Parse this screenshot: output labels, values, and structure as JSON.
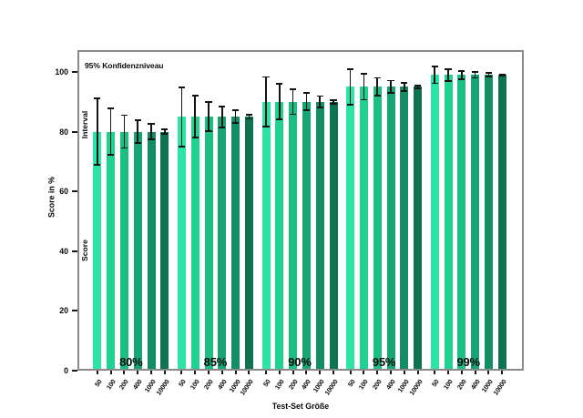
{
  "chart_data": {
    "type": "bar",
    "annotation": "95% Konfidenzniveau",
    "xlabel": "Test-Set Größe",
    "ylabel": "Score in %",
    "bar_annotation": "Score",
    "interval_annotation": "Interval",
    "ylim": [
      0,
      107.3
    ],
    "yticks": [
      0,
      20,
      40,
      60,
      80,
      100
    ],
    "categories": [
      "50",
      "100",
      "200",
      "400",
      "1000",
      "10000"
    ],
    "palette": [
      "#2ce4a3",
      "#20d292",
      "#1bbf84",
      "#17a574",
      "#128e62",
      "#0e7450"
    ],
    "error_color": "#141414",
    "frame_color": "#8a8a8a",
    "legend_position": "upper-left-inside",
    "grid": false,
    "series": [
      {
        "label": "80%",
        "score": 80,
        "ci": [
          [
            68.9,
            91.1
          ],
          [
            72.2,
            87.8
          ],
          [
            74.5,
            85.5
          ],
          [
            76.1,
            83.9
          ],
          [
            77.5,
            82.5
          ],
          [
            79.2,
            80.8
          ]
        ]
      },
      {
        "label": "85%",
        "score": 85,
        "ci": [
          [
            75.1,
            94.9
          ],
          [
            78.0,
            92.0
          ],
          [
            80.1,
            90.0
          ],
          [
            81.5,
            88.5
          ],
          [
            82.8,
            87.2
          ],
          [
            84.3,
            85.7
          ]
        ]
      },
      {
        "label": "90%",
        "score": 90,
        "ci": [
          [
            81.7,
            98.3
          ],
          [
            84.1,
            95.9
          ],
          [
            85.8,
            94.2
          ],
          [
            87.1,
            92.9
          ],
          [
            88.1,
            91.9
          ],
          [
            89.4,
            90.6
          ]
        ]
      },
      {
        "label": "95%",
        "score": 95,
        "ci": [
          [
            89.0,
            101.0
          ],
          [
            90.7,
            99.3
          ],
          [
            92.0,
            98.0
          ],
          [
            92.9,
            97.1
          ],
          [
            93.6,
            96.4
          ],
          [
            94.6,
            95.4
          ]
        ]
      },
      {
        "label": "99%",
        "score": 99,
        "ci": [
          [
            96.2,
            101.8
          ],
          [
            97.0,
            101.0
          ],
          [
            97.6,
            100.4
          ],
          [
            98.0,
            100.0
          ],
          [
            98.4,
            99.6
          ],
          [
            98.8,
            99.2
          ]
        ]
      }
    ]
  }
}
